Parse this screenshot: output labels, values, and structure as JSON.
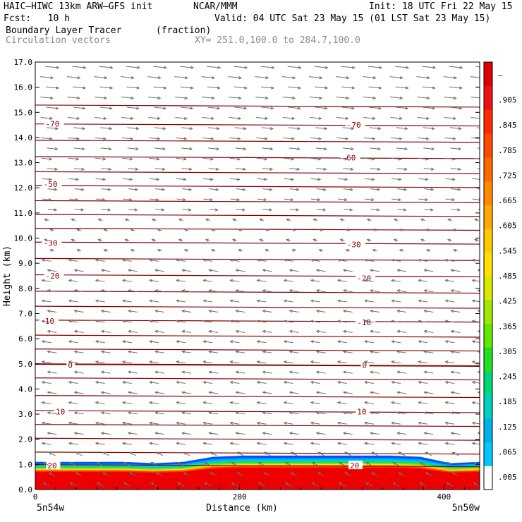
{
  "header": {
    "model": "HAIC–HIWC 13km ARW–GFS init",
    "org": "NCAR/MMM",
    "init": "Init: 18 UTC Fri 22 May 15",
    "fcst": "Fcst:   10 h",
    "valid": "Valid: 04 UTC Sat 23 May 15 (01 LST Sat 23 May 15)",
    "field": "Boundary Layer Tracer",
    "units": "(fraction)",
    "vectors": "Circulation vectors",
    "xy": "XY= 251.0,100.0 to 284.7,100.0"
  },
  "chart_data": {
    "type": "heatmap",
    "title": "Boundary Layer Tracer",
    "xlabel": "Distance (km)",
    "ylabel": "Height (km)",
    "xlim": [
      0,
      435
    ],
    "ylim": [
      0,
      17
    ],
    "x_ticks": [
      0,
      200,
      400
    ],
    "y_ticks": [
      "0.0",
      "1.0",
      "2.0",
      "3.0",
      "4.0",
      "5.0",
      "6.0",
      "7.0",
      "8.0",
      "9.0",
      "10.0",
      "11.0",
      "12.0",
      "13.0",
      "14.0",
      "15.0",
      "16.0",
      "17.0"
    ],
    "x_endpoints": [
      "5n54w",
      "5n50w"
    ],
    "colorbar": {
      "labels": [
        ".005",
        ".065",
        ".125",
        ".185",
        ".245",
        ".305",
        ".365",
        ".425",
        ".485",
        ".545",
        ".605",
        ".665",
        ".725",
        ".785",
        ".845",
        ".905",
        "–"
      ],
      "colors": [
        "#ffffff",
        "#00c8ff",
        "#00b0e8",
        "#00d0c0",
        "#00d878",
        "#20e020",
        "#60e800",
        "#a0e800",
        "#d8e800",
        "#ffe000",
        "#ffc800",
        "#ffa800",
        "#ff8800",
        "#ff6800",
        "#ff4800",
        "#ff2800",
        "#f01010",
        "#e00000"
      ]
    },
    "temperature_contours": {
      "values": [
        -70,
        -60,
        -50,
        -30,
        -20,
        -10,
        0,
        10,
        20
      ],
      "labeled": [
        {
          "value": "-70",
          "x": 10,
          "height": 14.55
        },
        {
          "value": "-70",
          "x": 305,
          "height": 14.5
        },
        {
          "value": "-60",
          "x": 300,
          "height": 13.2
        },
        {
          "value": "-50",
          "x": 8,
          "height": 12.15
        },
        {
          "value": "-30",
          "x": 8,
          "height": 9.8
        },
        {
          "value": "-30",
          "x": 305,
          "height": 9.75
        },
        {
          "value": "-20",
          "x": 10,
          "height": 8.5
        },
        {
          "value": "-20",
          "x": 315,
          "height": 8.4
        },
        {
          "value": "-10",
          "x": 5,
          "height": 6.7
        },
        {
          "value": "-10",
          "x": 315,
          "height": 6.65
        },
        {
          "value": "0",
          "x": 32,
          "height": 4.95
        },
        {
          "value": "0",
          "x": 320,
          "height": 4.95
        },
        {
          "value": "10",
          "x": 20,
          "height": 3.1
        },
        {
          "value": "10",
          "x": 315,
          "height": 3.1
        },
        {
          "value": "20",
          "x": 12,
          "height": 0.95
        },
        {
          "value": "20",
          "x": 308,
          "height": 0.95
        }
      ],
      "lines_heights": [
        15.25,
        14.5,
        13.85,
        13.2,
        12.6,
        12.05,
        11.45,
        10.9,
        10.35,
        9.8,
        9.15,
        8.5,
        7.85,
        7.25,
        6.7,
        6.1,
        5.55,
        4.95,
        4.4,
        3.7,
        3.1,
        2.55,
        2.0,
        1.45,
        0.95
      ]
    },
    "boundary_layer_top_km": [
      1.1,
      1.1,
      1.1,
      1.1,
      1.05,
      1.1,
      1.3,
      1.35,
      1.35,
      1.35,
      1.35,
      1.35,
      1.35,
      1.3,
      1.05,
      1.1
    ]
  }
}
